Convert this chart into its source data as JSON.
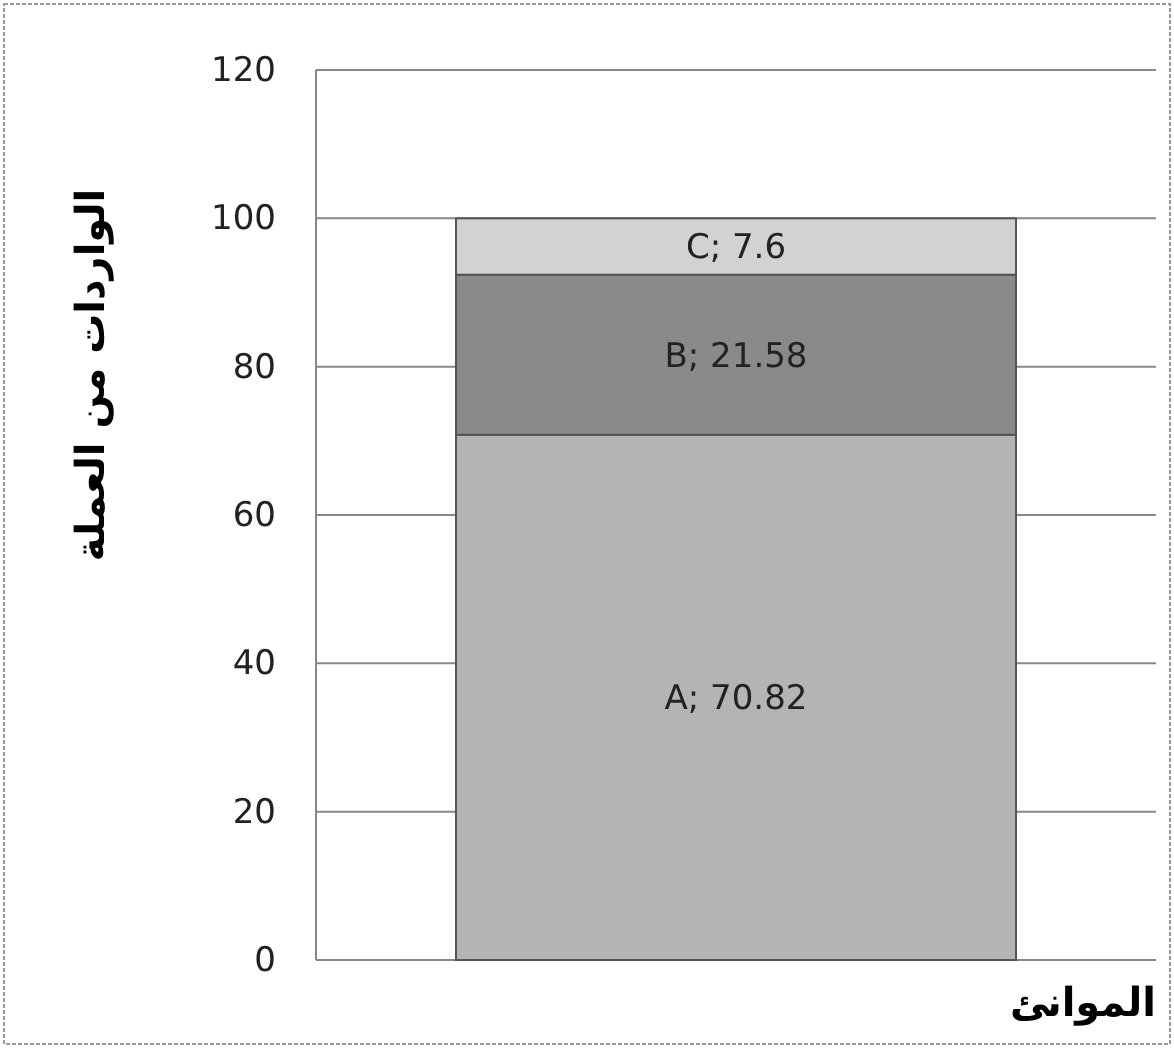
{
  "chart_data": {
    "type": "bar",
    "stacked": true,
    "categories": [
      null
    ],
    "series": [
      {
        "color": "#b4b4b4",
        "values": [
          70.82
        ],
        "value_labels": [
          "A; 70.82"
        ]
      },
      {
        "color": "#8a8a8a",
        "values": [
          21.58
        ],
        "value_labels": [
          "B; 21.58"
        ]
      },
      {
        "color": "#d2d2d2",
        "values": [
          7.6
        ],
        "value_labels": [
          "C; 7.6"
        ]
      }
    ],
    "ylim": [
      0,
      120
    ],
    "yticks": [
      0,
      20,
      40,
      60,
      80,
      100,
      120
    ],
    "grid": "y",
    "legend": false,
    "xlabel": "الموانئ",
    "ylabel": "الواردات من العملة"
  }
}
